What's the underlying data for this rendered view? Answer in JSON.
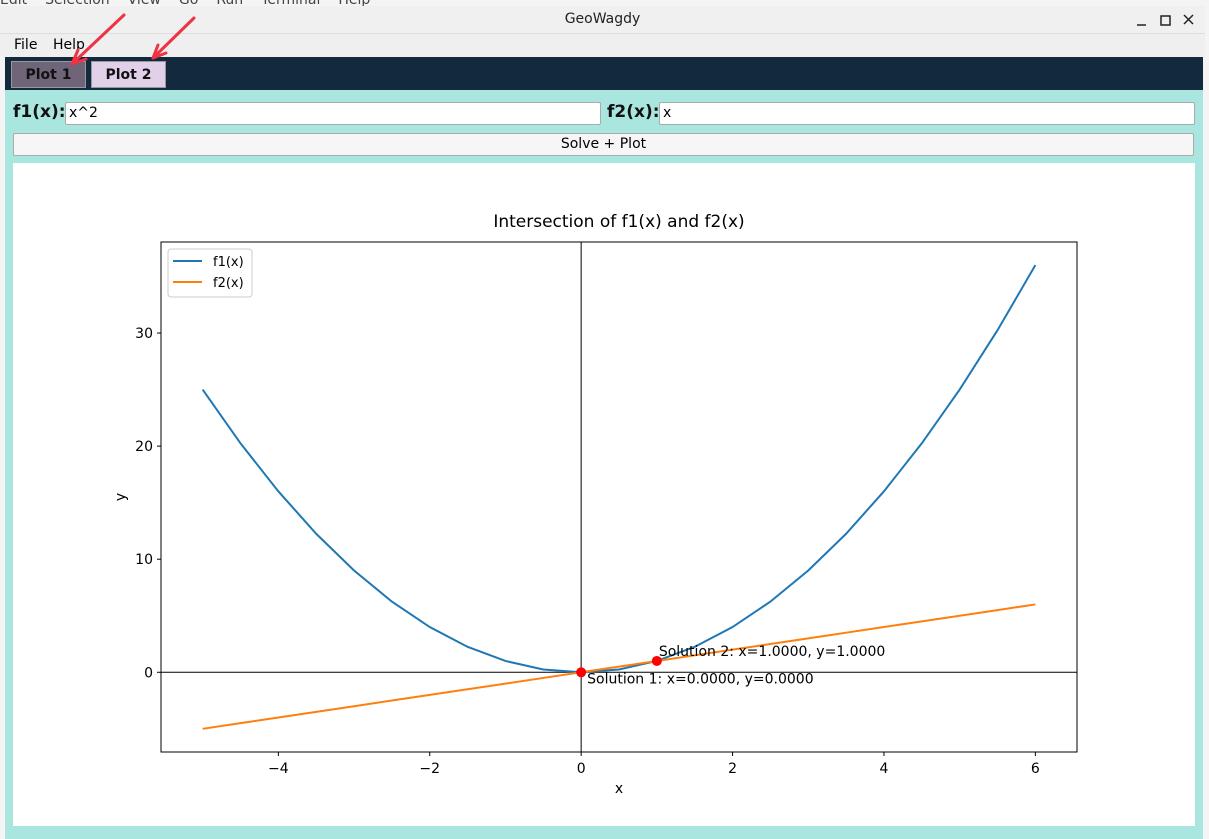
{
  "window": {
    "title": "GeoWagdy",
    "background_menu": [
      "Edit",
      "Selection",
      "View",
      "Go",
      "Run",
      "Terminal",
      "Help"
    ]
  },
  "menu": [
    "File",
    "Help"
  ],
  "tabs": [
    "Plot 1",
    "Plot 2"
  ],
  "form": {
    "f1_label": "f1(x):",
    "f1_value": "x^2",
    "f2_label": "f2(x):",
    "f2_value": "x",
    "button": "Solve + Plot"
  },
  "chart_data": {
    "type": "line",
    "title": "Intersection of f1(x) and f2(x)",
    "x_label": "x",
    "y_label": "y",
    "x": [
      -5,
      -4.5,
      -4,
      -3.5,
      -3,
      -2.5,
      -2,
      -1.5,
      -1,
      -0.5,
      0,
      0.5,
      1,
      1.5,
      2,
      2.5,
      3,
      3.5,
      4,
      4.5,
      5,
      5.5,
      6
    ],
    "series": [
      {
        "name": "f1(x)",
        "color": "#1f77b4",
        "values": [
          25,
          20.25,
          16,
          12.25,
          9,
          6.25,
          4,
          2.25,
          1,
          0.25,
          0,
          0.25,
          1,
          2.25,
          4,
          6.25,
          9,
          12.25,
          16,
          20.25,
          25,
          30.25,
          36
        ]
      },
      {
        "name": "f2(x)",
        "color": "#ff7f0e",
        "values": [
          -5,
          -4.5,
          -4,
          -3.5,
          -3,
          -2.5,
          -2,
          -1.5,
          -1,
          -0.5,
          0,
          0.5,
          1,
          1.5,
          2,
          2.5,
          3,
          3.5,
          4,
          4.5,
          5,
          5.5,
          6
        ]
      }
    ],
    "solutions": [
      {
        "x": 0,
        "y": 0,
        "label": "Solution 1: x=0.0000, y=0.0000"
      },
      {
        "x": 1,
        "y": 1,
        "label": "Solution 2: x=1.0000, y=1.0000"
      }
    ],
    "solution_color": "#ff0000",
    "xlim": [
      -5.55,
      6.55
    ],
    "ylim": [
      -7.05,
      38.05
    ],
    "xticks": [
      {
        "value": -4,
        "label": "−4"
      },
      {
        "value": -2,
        "label": "−2"
      },
      0,
      2,
      4,
      6
    ],
    "yticks": [
      0,
      10,
      20,
      30
    ],
    "zero_lines": true,
    "legend": "upper-left"
  }
}
